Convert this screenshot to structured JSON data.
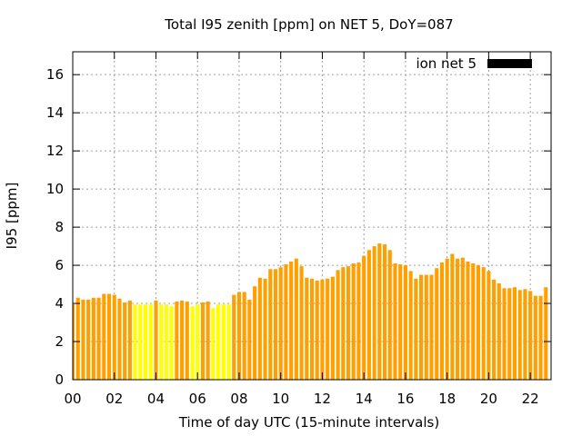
{
  "chart_data": {
    "type": "bar",
    "title": "Total I95 zenith [ppm] on NET 5, DoY=087",
    "xlabel": "Time of day UTC (15-minute intervals)",
    "ylabel": "I95 [ppm]",
    "xlim": [
      0,
      23
    ],
    "ylim": [
      0,
      17.2
    ],
    "x_ticks": [
      {
        "value": 0,
        "label": "00"
      },
      {
        "value": 2,
        "label": "02"
      },
      {
        "value": 4,
        "label": "04"
      },
      {
        "value": 6,
        "label": "06"
      },
      {
        "value": 8,
        "label": "08"
      },
      {
        "value": 10,
        "label": "10"
      },
      {
        "value": 12,
        "label": "12"
      },
      {
        "value": 14,
        "label": "14"
      },
      {
        "value": 16,
        "label": "16"
      },
      {
        "value": 18,
        "label": "18"
      },
      {
        "value": 20,
        "label": "20"
      },
      {
        "value": 22,
        "label": "22"
      }
    ],
    "y_ticks": [
      {
        "value": 0,
        "label": "0"
      },
      {
        "value": 2,
        "label": "2"
      },
      {
        "value": 4,
        "label": "4"
      },
      {
        "value": 6,
        "label": "6"
      },
      {
        "value": 8,
        "label": "8"
      },
      {
        "value": 10,
        "label": "10"
      },
      {
        "value": 12,
        "label": "12"
      },
      {
        "value": 14,
        "label": "14"
      },
      {
        "value": 16,
        "label": "16"
      }
    ],
    "grid": true,
    "legend": {
      "label": "ion net 5",
      "color": "#000000",
      "placement": "top-right"
    },
    "interval_hours": 0.25,
    "series": [
      {
        "name": "ion net 5",
        "values": [
          3.95,
          4.3,
          4.2,
          4.2,
          4.3,
          4.3,
          4.5,
          4.5,
          4.45,
          4.25,
          4.05,
          4.15,
          3.95,
          3.95,
          3.95,
          3.95,
          4.15,
          3.95,
          3.95,
          3.85,
          4.1,
          4.15,
          4.1,
          3.85,
          3.95,
          4.05,
          4.1,
          3.75,
          3.95,
          3.95,
          3.95,
          4.45,
          4.6,
          4.6,
          4.2,
          4.9,
          5.35,
          5.3,
          5.8,
          5.8,
          5.9,
          6.05,
          6.2,
          6.35,
          5.95,
          5.35,
          5.3,
          5.2,
          5.25,
          5.3,
          5.4,
          5.75,
          5.9,
          5.95,
          6.1,
          6.15,
          6.5,
          6.8,
          7.0,
          7.15,
          7.1,
          6.8,
          6.1,
          6.05,
          6.0,
          5.7,
          5.3,
          5.5,
          5.5,
          5.5,
          5.85,
          6.15,
          6.35,
          6.6,
          6.35,
          6.4,
          6.2,
          6.1,
          6.0,
          5.9,
          5.7,
          5.25,
          5.05,
          4.8,
          4.8,
          4.85,
          4.7,
          4.75,
          4.65,
          4.4,
          4.4,
          4.85
        ],
        "colors": [
          "#ff9f00",
          "#ff9f00",
          "#ff9f00",
          "#ff9f00",
          "#ff9f00",
          "#ff9f00",
          "#ff9f00",
          "#ff9f00",
          "#ff9f00",
          "#ff9f00",
          "#ff9f00",
          "#ff9f00",
          "#ffff00",
          "#ffff00",
          "#ffff00",
          "#ffff00",
          "#ff9f00",
          "#ffff00",
          "#ffff00",
          "#ffff00",
          "#ff9f00",
          "#ff9f00",
          "#ff9f00",
          "#ffff00",
          "#ffff00",
          "#ff9f00",
          "#ff9f00",
          "#ffff00",
          "#ffff00",
          "#ffff00",
          "#ffff00",
          "#ff9f00",
          "#ff9f00",
          "#ff9f00",
          "#ff9f00",
          "#ff9f00",
          "#ff9f00",
          "#ff9f00",
          "#ff9f00",
          "#ff9f00",
          "#ff9f00",
          "#ff9f00",
          "#ff9f00",
          "#ff9f00",
          "#ff9f00",
          "#ff9f00",
          "#ff9f00",
          "#ff9f00",
          "#ff9f00",
          "#ff9f00",
          "#ff9f00",
          "#ff9f00",
          "#ff9f00",
          "#ff9f00",
          "#ff9f00",
          "#ff9f00",
          "#ff9f00",
          "#ff9f00",
          "#ff9f00",
          "#ff9f00",
          "#ff9f00",
          "#ff9f00",
          "#ff9f00",
          "#ff9f00",
          "#ff9f00",
          "#ff9f00",
          "#ff9f00",
          "#ff9f00",
          "#ff9f00",
          "#ff9f00",
          "#ff9f00",
          "#ff9f00",
          "#ff9f00",
          "#ff9f00",
          "#ff9f00",
          "#ff9f00",
          "#ff9f00",
          "#ff9f00",
          "#ff9f00",
          "#ff9f00",
          "#ff9f00",
          "#ff9f00",
          "#ff9f00",
          "#ff9f00",
          "#ff9f00",
          "#ff9f00",
          "#ff9f00",
          "#ff9f00",
          "#ff9f00",
          "#ff9f00",
          "#ff9f00",
          "#ff9f00"
        ]
      }
    ]
  }
}
